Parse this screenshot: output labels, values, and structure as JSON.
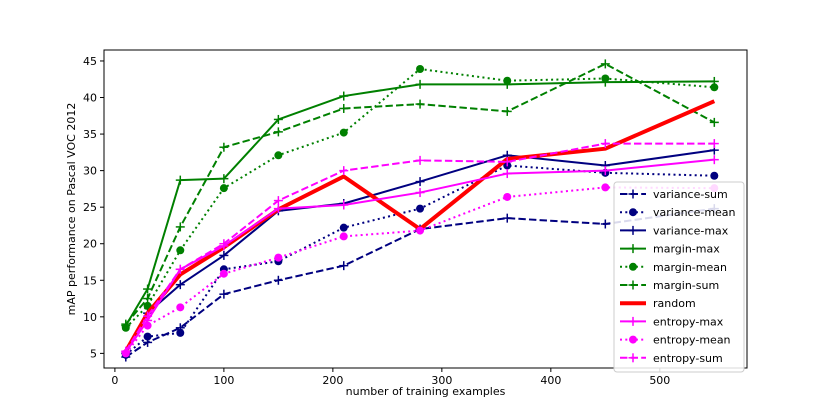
{
  "chart_data": {
    "type": "line",
    "title": "",
    "xlabel": "number of training examples",
    "ylabel": "mAP performance on Pascal VOC 2012",
    "xlim": [
      -10,
      580
    ],
    "ylim": [
      3,
      46.5
    ],
    "xticks": [
      0,
      100,
      200,
      300,
      400,
      500
    ],
    "yticks": [
      5,
      10,
      15,
      20,
      25,
      30,
      35,
      40,
      45
    ],
    "grid": false,
    "legend_position": "lower-right",
    "x": [
      10,
      30,
      60,
      100,
      150,
      210,
      280,
      360,
      450,
      550
    ],
    "series": [
      {
        "name": "variance-sum",
        "color": "#000080",
        "dash": "dashed",
        "marker": "plus",
        "width": 2,
        "values": [
          4.5,
          6.5,
          8.5,
          13.1,
          15.0,
          17.0,
          22.0,
          23.5,
          22.7,
          24.8
        ]
      },
      {
        "name": "variance-mean",
        "color": "#000080",
        "dash": "dotted",
        "marker": "dot",
        "width": 2,
        "values": [
          4.8,
          7.3,
          7.8,
          16.5,
          17.6,
          22.2,
          24.8,
          30.7,
          29.7,
          29.3
        ]
      },
      {
        "name": "variance-max",
        "color": "#000080",
        "dash": "solid",
        "marker": "plus",
        "width": 2,
        "values": [
          5.0,
          10.5,
          14.4,
          18.4,
          24.5,
          25.5,
          28.5,
          32.1,
          30.7,
          32.8
        ]
      },
      {
        "name": "margin-max",
        "color": "#008000",
        "dash": "solid",
        "marker": "plus",
        "width": 2,
        "values": [
          8.8,
          13.8,
          28.7,
          28.9,
          37.0,
          40.2,
          41.8,
          41.8,
          42.1,
          42.2
        ]
      },
      {
        "name": "margin-mean",
        "color": "#008000",
        "dash": "dotted",
        "marker": "dot",
        "width": 2,
        "values": [
          8.5,
          11.5,
          19.1,
          27.6,
          32.1,
          35.2,
          43.9,
          42.3,
          42.6,
          41.4
        ]
      },
      {
        "name": "margin-sum",
        "color": "#008000",
        "dash": "dashed",
        "marker": "plus",
        "width": 2,
        "values": [
          9.0,
          12.5,
          22.3,
          33.2,
          35.3,
          38.5,
          39.1,
          38.1,
          44.6,
          36.6
        ]
      },
      {
        "name": "random",
        "color": "#ff0000",
        "dash": "solid",
        "marker": "none",
        "width": 4,
        "values": [
          5.3,
          10.5,
          15.8,
          19.5,
          24.7,
          29.2,
          22.0,
          31.6,
          33.0,
          39.5
        ]
      },
      {
        "name": "entropy-max",
        "color": "#ff00ff",
        "dash": "solid",
        "marker": "plus",
        "width": 2,
        "values": [
          5.2,
          9.5,
          16.5,
          19.7,
          24.8,
          25.3,
          27.0,
          29.6,
          30.0,
          31.5
        ]
      },
      {
        "name": "entropy-mean",
        "color": "#ff00ff",
        "dash": "dotted",
        "marker": "dot",
        "width": 2,
        "values": [
          5.0,
          8.8,
          11.3,
          15.9,
          18.1,
          21.0,
          21.8,
          26.4,
          27.7,
          27.6
        ]
      },
      {
        "name": "entropy-sum",
        "color": "#ff00ff",
        "dash": "dashed",
        "marker": "plus",
        "width": 2,
        "values": [
          5.3,
          10.1,
          16.5,
          20.0,
          25.9,
          30.0,
          31.4,
          31.2,
          33.7,
          33.7
        ]
      }
    ]
  }
}
